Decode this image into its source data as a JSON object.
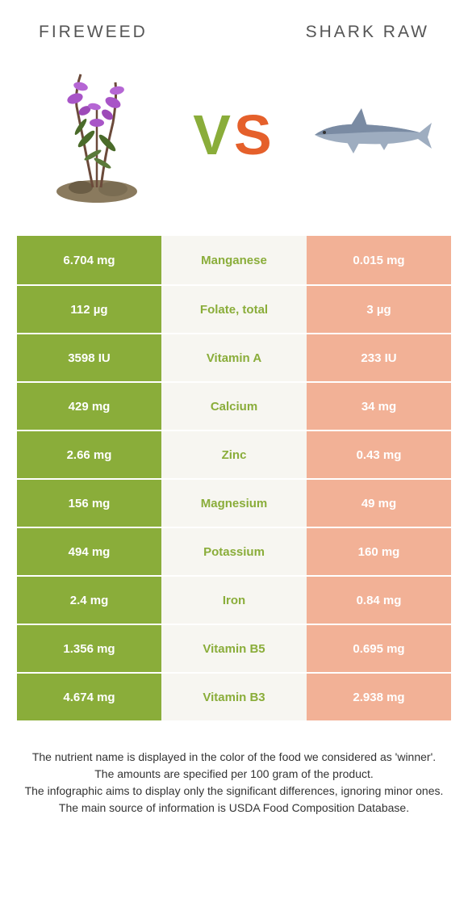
{
  "header": {
    "left_title": "Fireweed",
    "right_title": "Shark raw"
  },
  "vs": {
    "v": "V",
    "s": "S"
  },
  "colors": {
    "left_win": "#8aad3a",
    "left_lose": "#c4d48f",
    "right_win": "#e5602b",
    "right_lose": "#f2b196",
    "mid_left_text": "#8aad3a",
    "mid_right_text": "#e5602b"
  },
  "rows": [
    {
      "nutrient": "Manganese",
      "left": "6.704 mg",
      "right": "0.015 mg",
      "winner": "left"
    },
    {
      "nutrient": "Folate, total",
      "left": "112 µg",
      "right": "3 µg",
      "winner": "left"
    },
    {
      "nutrient": "Vitamin A",
      "left": "3598 IU",
      "right": "233 IU",
      "winner": "left"
    },
    {
      "nutrient": "Calcium",
      "left": "429 mg",
      "right": "34 mg",
      "winner": "left"
    },
    {
      "nutrient": "Zinc",
      "left": "2.66 mg",
      "right": "0.43 mg",
      "winner": "left"
    },
    {
      "nutrient": "Magnesium",
      "left": "156 mg",
      "right": "49 mg",
      "winner": "left"
    },
    {
      "nutrient": "Potassium",
      "left": "494 mg",
      "right": "160 mg",
      "winner": "left"
    },
    {
      "nutrient": "Iron",
      "left": "2.4 mg",
      "right": "0.84 mg",
      "winner": "left"
    },
    {
      "nutrient": "Vitamin B5",
      "left": "1.356 mg",
      "right": "0.695 mg",
      "winner": "left"
    },
    {
      "nutrient": "Vitamin B3",
      "left": "4.674 mg",
      "right": "2.938 mg",
      "winner": "left"
    }
  ],
  "footnotes": [
    "The nutrient name is displayed in the color of the food we considered as 'winner'.",
    "The amounts are specified per 100 gram of the product.",
    "The infographic aims to display only the significant differences, ignoring minor ones.",
    "The main source of information is USDA Food Composition Database."
  ]
}
